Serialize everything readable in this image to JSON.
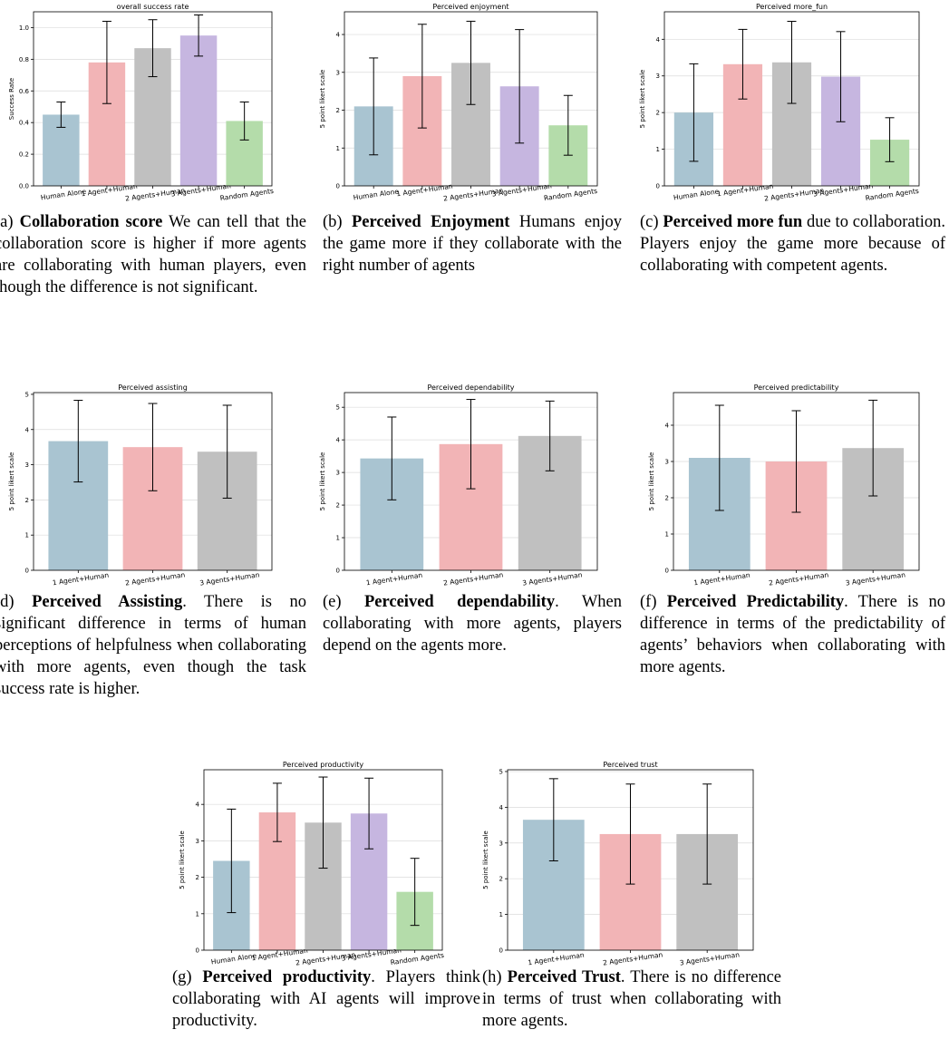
{
  "colors": {
    "palette": [
      "#a9c4d1",
      "#f2b4b6",
      "#c0c0c0",
      "#c6b6e0",
      "#b4dcaa"
    ],
    "grid": "#dcdcdc",
    "axis": "#555555",
    "error_bar": "#000000"
  },
  "chart_data": [
    {
      "type": "bar",
      "id": "a",
      "title": "overall success rate",
      "ylabel": "Success Rate",
      "xlabel": "",
      "categories": [
        "Human Alone",
        "1 Agent+Human",
        "2 Agents+Human",
        "3 Agents+Human",
        "Random Agents"
      ],
      "values": [
        0.45,
        0.78,
        0.87,
        0.95,
        0.41
      ],
      "errors": [
        0.08,
        0.26,
        0.18,
        0.13,
        0.12
      ],
      "ylim": [
        0,
        1.1
      ],
      "yticks": [
        0.0,
        0.2,
        0.4,
        0.6,
        0.8,
        1.0
      ],
      "ytick_labels": [
        "0.0",
        "0.2",
        "0.4",
        "0.6",
        "0.8",
        "1.0"
      ],
      "grid": true
    },
    {
      "type": "bar",
      "id": "b",
      "title": "Perceived enjoyment",
      "ylabel": "5 point likert  scale",
      "xlabel": "",
      "categories": [
        "Human Alone",
        "1 Agent+Human",
        "2 Agents+Human",
        "3 Agents+Human",
        "Random Agents"
      ],
      "values": [
        2.1,
        2.9,
        3.25,
        2.63,
        1.6
      ],
      "errors": [
        1.28,
        1.37,
        1.1,
        1.5,
        0.79
      ],
      "ylim": [
        0,
        4.6
      ],
      "yticks": [
        0,
        1,
        2,
        3,
        4
      ],
      "ytick_labels": [
        "0",
        "1",
        "2",
        "3",
        "4"
      ],
      "grid": true
    },
    {
      "type": "bar",
      "id": "c",
      "title": "Perceived more_fun",
      "ylabel": "5 point likert  scale",
      "xlabel": "",
      "categories": [
        "Human Alone",
        "1 Agent+Human",
        "2 Agents+Human",
        "3 Agents+Human",
        "Random Agents"
      ],
      "values": [
        2.0,
        3.32,
        3.37,
        2.98,
        1.26
      ],
      "errors": [
        1.33,
        0.95,
        1.12,
        1.23,
        0.6
      ],
      "ylim": [
        0,
        4.75
      ],
      "yticks": [
        0,
        1,
        2,
        3,
        4
      ],
      "ytick_labels": [
        "0",
        "1",
        "2",
        "3",
        "4"
      ],
      "grid": true
    },
    {
      "type": "bar",
      "id": "d",
      "title": "Perceived assisting",
      "ylabel": "5 point likert  scale",
      "xlabel": "",
      "categories": [
        "1 Agent+Human",
        "2 Agents+Human",
        "3 Agents+Human"
      ],
      "values": [
        3.67,
        3.5,
        3.37
      ],
      "errors": [
        1.16,
        1.24,
        1.32
      ],
      "ylim": [
        0,
        5.05
      ],
      "yticks": [
        0,
        1,
        2,
        3,
        4,
        5
      ],
      "ytick_labels": [
        "0",
        "1",
        "2",
        "3",
        "4",
        "5"
      ],
      "grid": true
    },
    {
      "type": "bar",
      "id": "e",
      "title": "Perceived dependability",
      "ylabel": "5 point likert  scale",
      "xlabel": "",
      "categories": [
        "1 Agent+Human",
        "2 Agents+Human",
        "3 Agents+Human"
      ],
      "values": [
        3.43,
        3.87,
        4.12
      ],
      "errors": [
        1.27,
        1.37,
        1.07
      ],
      "ylim": [
        0,
        5.45
      ],
      "yticks": [
        0,
        1,
        2,
        3,
        4,
        5
      ],
      "ytick_labels": [
        "0",
        "1",
        "2",
        "3",
        "4",
        "5"
      ],
      "grid": true
    },
    {
      "type": "bar",
      "id": "f",
      "title": "Perceived predictability",
      "ylabel": "5 point likert  scale",
      "xlabel": "",
      "categories": [
        "1 Agent+Human",
        "2 Agents+Human",
        "3 Agents+Human"
      ],
      "values": [
        3.1,
        3.0,
        3.37
      ],
      "errors": [
        1.45,
        1.4,
        1.32
      ],
      "ylim": [
        0,
        4.9
      ],
      "yticks": [
        0,
        1,
        2,
        3,
        4
      ],
      "ytick_labels": [
        "0",
        "1",
        "2",
        "3",
        "4"
      ],
      "grid": true
    },
    {
      "type": "bar",
      "id": "g",
      "title": "Perceived productivity",
      "ylabel": "5 point likert  scale",
      "xlabel": "",
      "categories": [
        "Human Alone",
        "1 Agent+Human",
        "2 Agents+Human",
        "3 Agents+Human",
        "Random Agents"
      ],
      "values": [
        2.45,
        3.78,
        3.5,
        3.75,
        1.6
      ],
      "errors": [
        1.42,
        0.8,
        1.25,
        0.97,
        0.92
      ],
      "ylim": [
        0,
        4.95
      ],
      "yticks": [
        0,
        1,
        2,
        3,
        4
      ],
      "ytick_labels": [
        "0",
        "1",
        "2",
        "3",
        "4"
      ],
      "grid": true
    },
    {
      "type": "bar",
      "id": "h",
      "title": "Perceived trust",
      "ylabel": "5 point likert  scale",
      "xlabel": "",
      "categories": [
        "1 Agent+Human",
        "2 Agents+Human",
        "3 Agents+Human"
      ],
      "values": [
        3.65,
        3.25,
        3.25
      ],
      "errors": [
        1.15,
        1.4,
        1.4
      ],
      "ylim": [
        0,
        5.05
      ],
      "yticks": [
        0,
        1,
        2,
        3,
        4,
        5
      ],
      "ytick_labels": [
        "0",
        "1",
        "2",
        "3",
        "4",
        "5"
      ],
      "grid": true
    }
  ],
  "captions": {
    "a": {
      "tag": "(a)",
      "bold": "Collaboration score",
      "text": " We can tell that the collaboration score is higher if more agents are collaborating with human players, even though the difference is not significant."
    },
    "b": {
      "tag": "(b)",
      "bold": "Perceived Enjoyment",
      "text": " Humans enjoy the game more if they collaborate with the right number of agents"
    },
    "c": {
      "tag": "(c)",
      "bold": "Perceived more fun",
      "text": " due to collaboration. Players enjoy the game more because of collaborating with competent agents."
    },
    "d": {
      "tag": "(d)",
      "bold": "Perceived Assisting",
      "text": ". There is no significant difference in terms of human perceptions of helpfulness when collaborating with more agents, even though the task success rate is higher."
    },
    "e": {
      "tag": "(e)",
      "bold": "Perceived dependability",
      "text": ". When collaborating with more agents, players depend on the agents more."
    },
    "f": {
      "tag": "(f)",
      "bold": "Perceived Predictability",
      "text": ". There is no difference in terms of the predictability of agents’ behaviors when collaborating with more agents."
    },
    "g": {
      "tag": "(g)",
      "bold": "Perceived productivity",
      "text": ". Players think collaborating with AI agents will improve productivity."
    },
    "h": {
      "tag": "(h)",
      "bold": "Perceived Trust",
      "text": ". There is no difference in terms of trust when collaborating with more agents."
    }
  }
}
